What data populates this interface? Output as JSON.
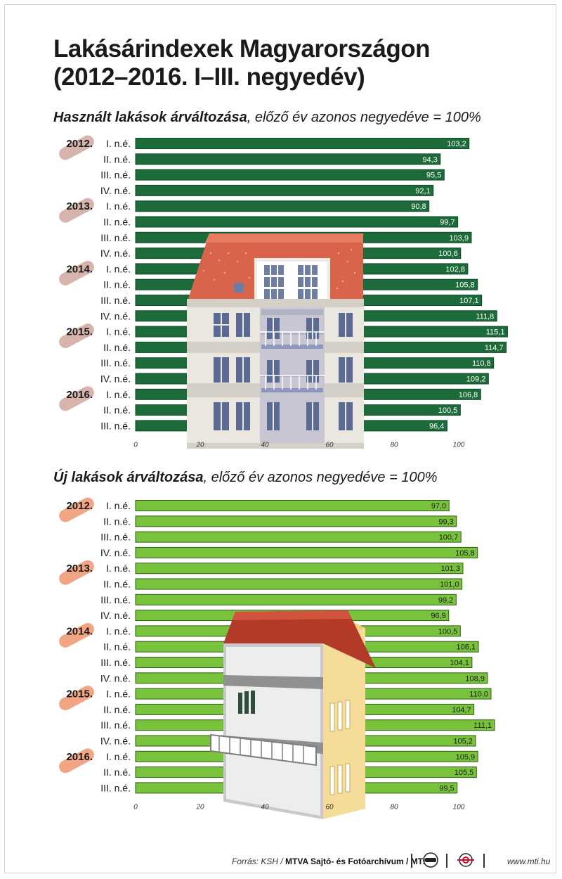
{
  "title_line1": "Lakásárindexek Magyarországon",
  "title_line2": "(2012–2016. I–III. negyedév)",
  "colors": {
    "dark_green": "#1d6b3a",
    "light_green": "#79c23c",
    "pill_mauve": "#d6b4ab",
    "pill_salmon": "#f1a584"
  },
  "chart_data": [
    {
      "type": "bar",
      "orientation": "horizontal",
      "title_bold": "Használt lakások árváltozása",
      "title_rest": ", előző év azonos negyedéve = 100%",
      "years": [
        "2012.",
        "2013.",
        "2014.",
        "2015.",
        "2016."
      ],
      "categories": [
        "I. n.é.",
        "II. n.é.",
        "III. n.é.",
        "IV. n.é.",
        "I. n.é.",
        "II. n.é.",
        "III. n.é.",
        "IV. n.é.",
        "I. n.é.",
        "II. n.é.",
        "III. n.é.",
        "IV. n.é.",
        "I. n.é.",
        "II. n.é.",
        "III. n.é.",
        "IV. n.é.",
        "I. n.é.",
        "II. n.é.",
        "III. n.é."
      ],
      "values": [
        103.2,
        94.3,
        95.5,
        92.1,
        90.8,
        99.7,
        103.9,
        100.6,
        102.8,
        105.8,
        107.1,
        111.8,
        115.1,
        114.7,
        110.8,
        109.2,
        106.8,
        100.5,
        96.4
      ],
      "value_labels": [
        "103,2",
        "94,3",
        "95,5",
        "92,1",
        "90,8",
        "99,7",
        "103,9",
        "100,6",
        "102,8",
        "105,8",
        "107,1",
        "111,8",
        "115,1",
        "114,7",
        "110,8",
        "109,2",
        "106,8",
        "100,5",
        "96,4"
      ],
      "xticks": [
        "0",
        "20",
        "40",
        "60",
        "80",
        "100"
      ],
      "xlim": [
        0,
        100
      ]
    },
    {
      "type": "bar",
      "orientation": "horizontal",
      "title_bold": "Új lakások árváltozása",
      "title_rest": ", előző év azonos negyedéve = 100%",
      "years": [
        "2012.",
        "2013.",
        "2014.",
        "2015.",
        "2016."
      ],
      "categories": [
        "I. n.é.",
        "II. n.é.",
        "III. n.é.",
        "IV. n.é.",
        "I. n.é.",
        "II. n.é.",
        "III. n.é.",
        "IV. n.é.",
        "I. n.é.",
        "II. n.é.",
        "III. n.é.",
        "IV. n.é.",
        "I. n.é.",
        "II. n.é.",
        "III. n.é.",
        "IV. n.é.",
        "I. n.é.",
        "II. n.é.",
        "III. n.é."
      ],
      "values": [
        97.0,
        99.3,
        100.7,
        105.8,
        101.3,
        101.0,
        99.2,
        96.9,
        100.5,
        106.1,
        104.1,
        108.9,
        110.0,
        104.7,
        111.1,
        105.2,
        105.9,
        105.5,
        99.5
      ],
      "value_labels": [
        "97,0",
        "99,3",
        "100,7",
        "105,8",
        "101,3",
        "101,0",
        "99,2",
        "96,9",
        "100,5",
        "106,1",
        "104,1",
        "108,9",
        "110,0",
        "104,7",
        "111,1",
        "105,2",
        "105,9",
        "105,5",
        "99,5"
      ],
      "xticks": [
        "0",
        "20",
        "40",
        "60",
        "80",
        "100"
      ],
      "xlim": [
        0,
        100
      ]
    }
  ],
  "footer": {
    "source_label": "Forrás: KSH / ",
    "source_bold": "MTVA Sajtó- és Fotóarchívum / MTI",
    "logo1_icon": "mtva-logo-icon",
    "logo2_icon": "mti-logo-icon",
    "website": "www.mti.hu"
  }
}
